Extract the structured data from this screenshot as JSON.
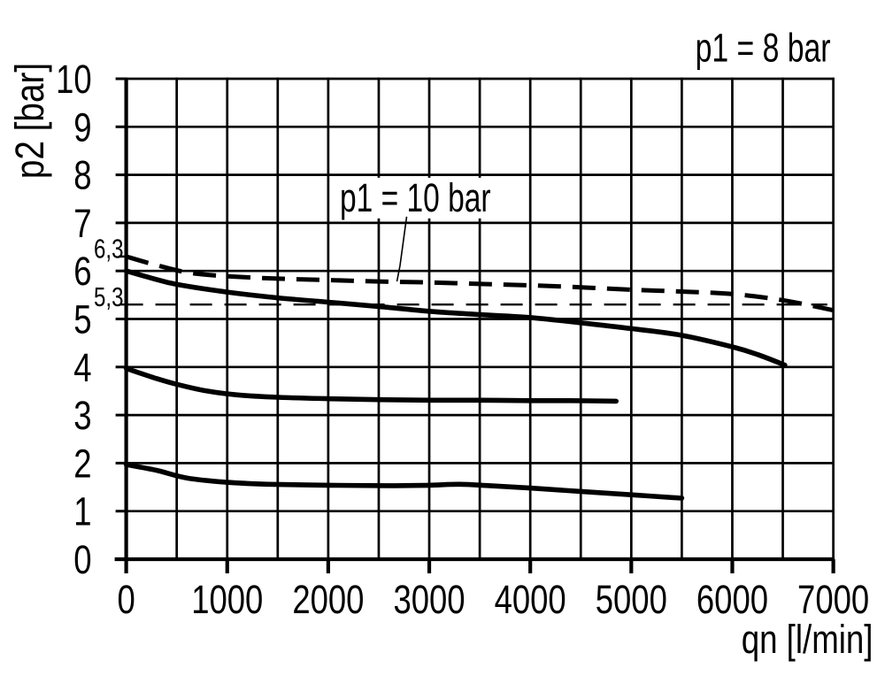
{
  "chart_data": {
    "type": "line",
    "title": "p1 = 8 bar",
    "xlabel": "qn [l/min]",
    "ylabel": "p2 [bar]",
    "xlim": [
      0,
      7000
    ],
    "ylim": [
      0,
      10
    ],
    "x_ticks": [
      0,
      1000,
      2000,
      3000,
      4000,
      5000,
      6000,
      7000
    ],
    "x_tick_labels": [
      "0",
      "1000",
      "2000",
      "3000",
      "4000",
      "5000",
      "6000",
      "7000"
    ],
    "y_ticks": [
      0,
      1,
      2,
      3,
      4,
      5,
      6,
      7,
      8,
      9,
      10
    ],
    "y_tick_labels": [
      "0",
      "1",
      "2",
      "3",
      "4",
      "5",
      "6",
      "7",
      "8",
      "9",
      "10"
    ],
    "x_grid_step": 500,
    "y_grid_step": 1,
    "grid": "on",
    "legend": "none",
    "ink_color": "#000000",
    "background_color": "#ffffff",
    "y_marks": [
      {
        "label": "6,3",
        "value": 6.3,
        "tick": true
      },
      {
        "label": "5,3",
        "value": 5.3,
        "tick": false
      }
    ],
    "reference_line": {
      "value": 5.3,
      "style": "dashed-thin",
      "x_start": 0,
      "x_end": 6940
    },
    "annotations": [
      {
        "text": "p1 = 10 bar",
        "points_to_series": "p1-10bar",
        "label_anchor_data": [
          2115,
          7.24
        ],
        "arrow_to_data": [
          2680,
          5.78
        ]
      }
    ],
    "series": [
      {
        "id": "p1-10bar",
        "label": "p1 = 10 bar",
        "line_style": "dashed",
        "points": [
          [
            0,
            6.3
          ],
          [
            250,
            6.15
          ],
          [
            600,
            5.97
          ],
          [
            1000,
            5.89
          ],
          [
            1500,
            5.84
          ],
          [
            2000,
            5.81
          ],
          [
            2500,
            5.78
          ],
          [
            3000,
            5.76
          ],
          [
            3500,
            5.73
          ],
          [
            4000,
            5.7
          ],
          [
            4500,
            5.66
          ],
          [
            5000,
            5.61
          ],
          [
            5500,
            5.57
          ],
          [
            6000,
            5.52
          ],
          [
            6500,
            5.39
          ],
          [
            7000,
            5.18
          ]
        ]
      },
      {
        "id": "p1-8bar",
        "label": "p1 = 8 bar",
        "line_style": "solid",
        "points": [
          [
            0,
            6.0
          ],
          [
            250,
            5.85
          ],
          [
            500,
            5.72
          ],
          [
            1000,
            5.56
          ],
          [
            1500,
            5.44
          ],
          [
            2000,
            5.35
          ],
          [
            2500,
            5.26
          ],
          [
            3000,
            5.16
          ],
          [
            3500,
            5.09
          ],
          [
            4000,
            5.03
          ],
          [
            4500,
            4.92
          ],
          [
            5000,
            4.8
          ],
          [
            5500,
            4.66
          ],
          [
            6000,
            4.42
          ],
          [
            6250,
            4.26
          ],
          [
            6520,
            4.04
          ]
        ]
      },
      {
        "id": "setting-4bar",
        "label": "",
        "line_style": "solid",
        "points": [
          [
            0,
            3.97
          ],
          [
            300,
            3.76
          ],
          [
            500,
            3.64
          ],
          [
            800,
            3.5
          ],
          [
            1100,
            3.42
          ],
          [
            1500,
            3.37
          ],
          [
            2000,
            3.34
          ],
          [
            2500,
            3.32
          ],
          [
            3000,
            3.31
          ],
          [
            3500,
            3.31
          ],
          [
            4000,
            3.3
          ],
          [
            4400,
            3.3
          ],
          [
            4850,
            3.29
          ]
        ]
      },
      {
        "id": "setting-2bar",
        "label": "",
        "line_style": "solid",
        "points": [
          [
            0,
            1.97
          ],
          [
            300,
            1.85
          ],
          [
            600,
            1.69
          ],
          [
            1000,
            1.6
          ],
          [
            1400,
            1.56
          ],
          [
            2000,
            1.54
          ],
          [
            2600,
            1.53
          ],
          [
            3000,
            1.54
          ],
          [
            3300,
            1.56
          ],
          [
            3600,
            1.53
          ],
          [
            4000,
            1.48
          ],
          [
            4500,
            1.41
          ],
          [
            5000,
            1.34
          ],
          [
            5500,
            1.27
          ]
        ]
      }
    ]
  }
}
